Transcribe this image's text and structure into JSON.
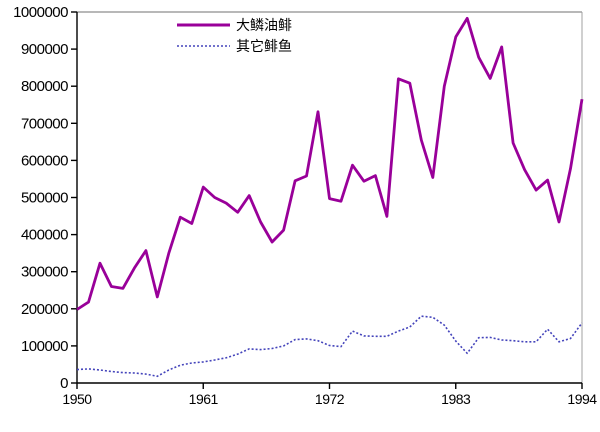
{
  "chart_data": {
    "type": "line",
    "title": "",
    "xlabel": "",
    "ylabel": "",
    "xlim": [
      1950,
      1994
    ],
    "ylim": [
      0,
      1000000
    ],
    "xticks": [
      1950,
      1961,
      1972,
      1983,
      1994
    ],
    "yticks": [
      0,
      100000,
      200000,
      300000,
      400000,
      500000,
      600000,
      700000,
      800000,
      900000,
      1000000
    ],
    "grid": false,
    "legend_position": "top-inside-left",
    "x": [
      1950,
      1951,
      1952,
      1953,
      1954,
      1955,
      1956,
      1957,
      1958,
      1959,
      1960,
      1961,
      1962,
      1963,
      1964,
      1965,
      1966,
      1967,
      1968,
      1969,
      1970,
      1971,
      1972,
      1973,
      1974,
      1975,
      1976,
      1977,
      1978,
      1979,
      1980,
      1981,
      1982,
      1983,
      1984,
      1985,
      1986,
      1987,
      1988,
      1989,
      1990,
      1991,
      1992,
      1993,
      1994
    ],
    "series": [
      {
        "name": "大鳞油鲱",
        "color": "#990099",
        "style": "solid",
        "line_width": 2.8,
        "values": [
          198000,
          218000,
          323000,
          260000,
          255000,
          310000,
          357000,
          232000,
          350000,
          447000,
          430000,
          528000,
          500000,
          485000,
          460000,
          505000,
          434000,
          380000,
          412000,
          545000,
          558000,
          731000,
          497000,
          490000,
          587000,
          544000,
          559000,
          449000,
          820000,
          808000,
          655000,
          554000,
          800000,
          933000,
          983000,
          878000,
          821000,
          906000,
          647000,
          575000,
          520000,
          547000,
          434000,
          578000,
          765000
        ]
      },
      {
        "name": "其它鲱鱼",
        "color": "#4444bb",
        "style": "dotted",
        "line_width": 1.6,
        "values": [
          36000,
          38000,
          35000,
          31000,
          28000,
          27000,
          24000,
          18000,
          35000,
          48000,
          54000,
          57000,
          62000,
          68000,
          78000,
          92000,
          90000,
          93000,
          100000,
          117000,
          119000,
          114000,
          101000,
          98000,
          140000,
          127000,
          126000,
          126000,
          140000,
          151000,
          180000,
          177000,
          156000,
          113000,
          80000,
          122000,
          123000,
          116000,
          114000,
          111000,
          111000,
          145000,
          111000,
          120000,
          162000
        ]
      }
    ]
  },
  "colors": {
    "axis": "#000000",
    "frame": "#a0a0a0",
    "background": "#ffffff",
    "text": "#000000"
  }
}
